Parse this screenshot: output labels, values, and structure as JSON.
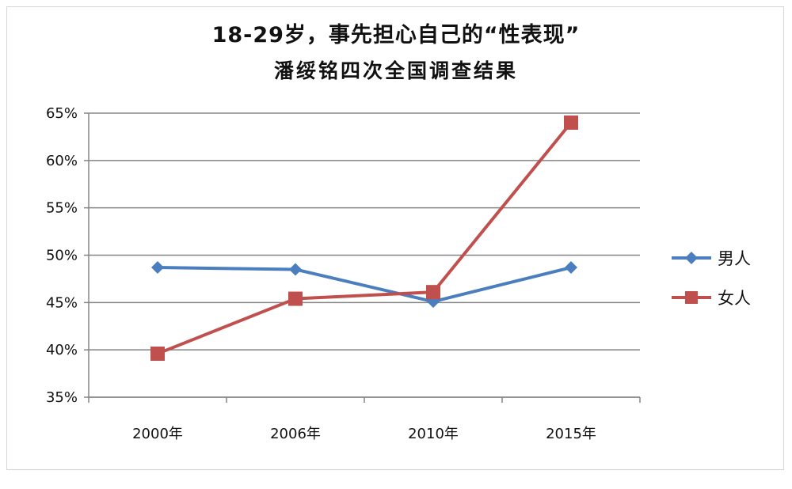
{
  "chart_data": {
    "type": "line",
    "title": "18-29岁，事先担心自己的“性表现”",
    "subtitle": "潘绥铭四次全国调查结果",
    "categories": [
      "2000年",
      "2006年",
      "2010年",
      "2015年"
    ],
    "yticks": [
      "35%",
      "40%",
      "45%",
      "50%",
      "55%",
      "60%",
      "65%"
    ],
    "ylim": [
      35,
      65
    ],
    "ystep": 5,
    "grid": true,
    "legend_position": "right",
    "series": [
      {
        "name": "男人",
        "color": "#4a7ebf",
        "marker": "diamond",
        "values": [
          48.7,
          48.5,
          45.1,
          48.7
        ]
      },
      {
        "name": "女人",
        "color": "#c0504d",
        "marker": "square",
        "values": [
          39.6,
          45.4,
          46.1,
          64.0
        ]
      }
    ]
  }
}
